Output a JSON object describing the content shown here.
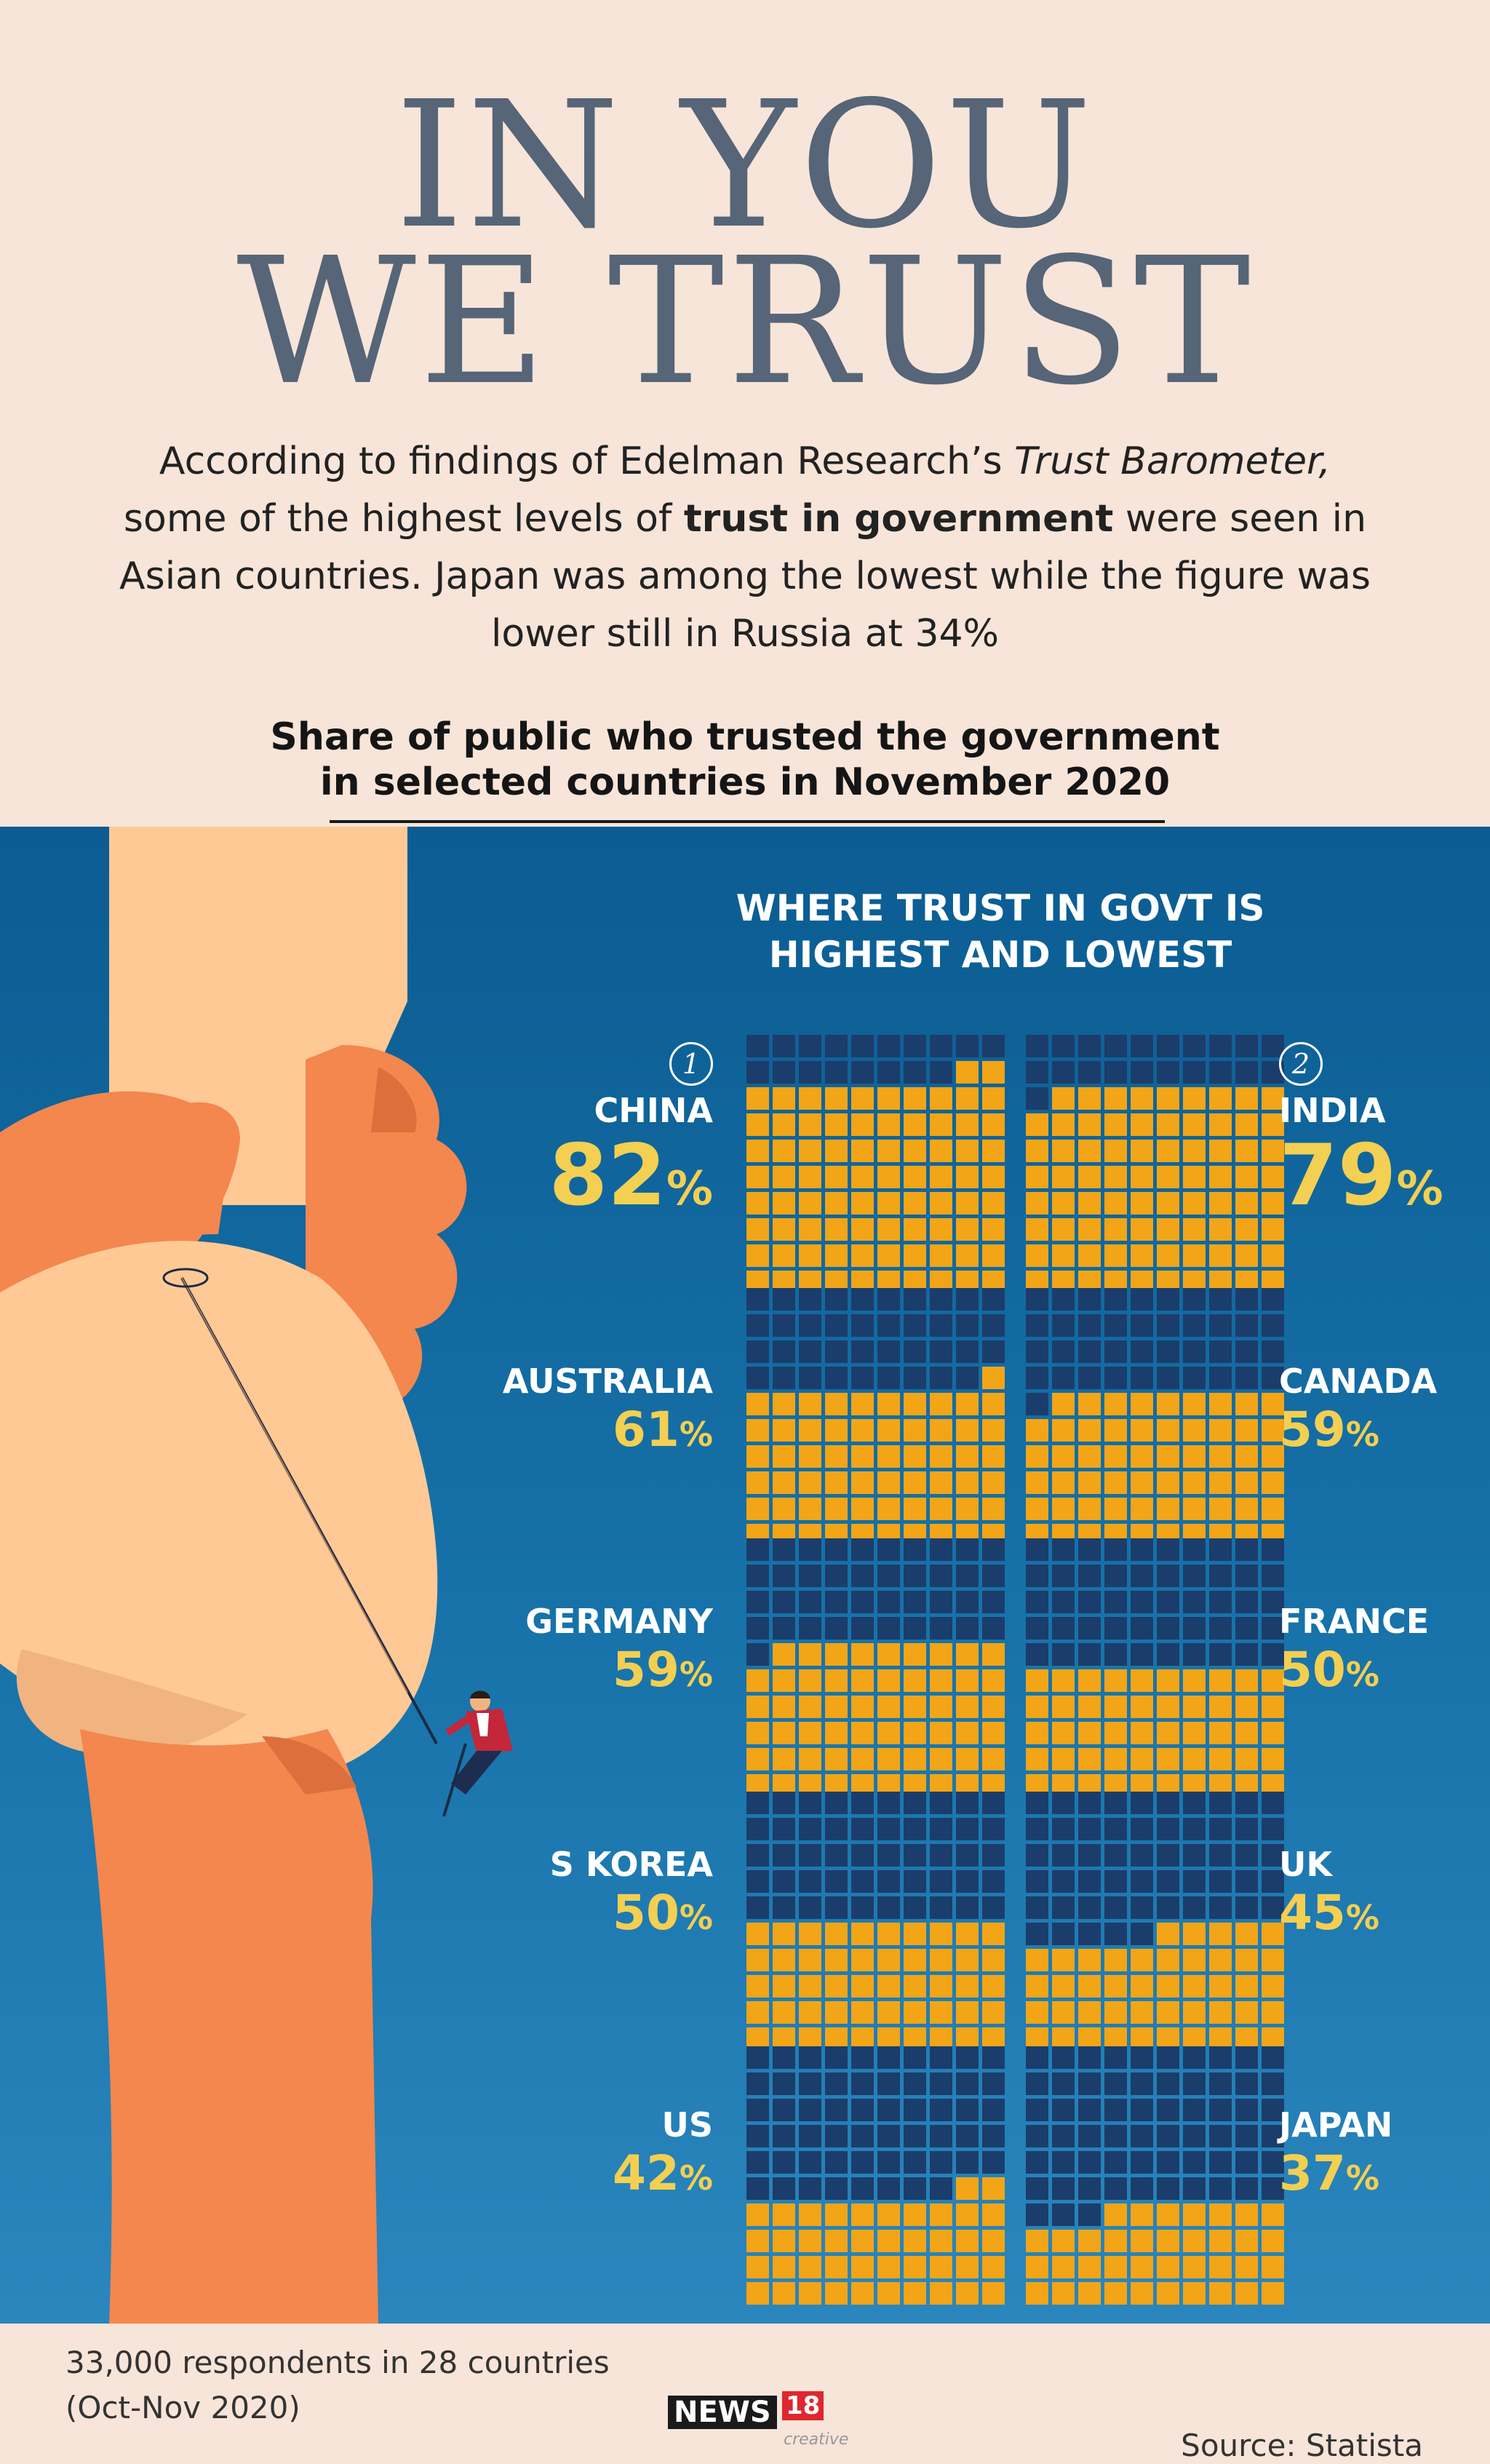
{
  "title": {
    "line1": "IN YOU",
    "line2": "WE TRUST"
  },
  "intro": {
    "part1": "According to findings of Edelman Research’s ",
    "italic": "Trust Barometer,",
    "part2": " some of the highest levels of ",
    "bold": "trust in government",
    "part3": " were seen in Asian countries. Japan was among the lowest while the figure was lower still in Russia at 34%"
  },
  "subtitle": {
    "line1": "Share of public who trusted the government",
    "line2": "in selected countries in November 2020"
  },
  "panel_heading": {
    "line1": "WHERE TRUST IN GOVT IS",
    "line2": "HIGHEST AND LOWEST"
  },
  "percent_sign": "%",
  "colors": {
    "filled": "#f2a516",
    "empty": "#1b3d6b",
    "background": "#f7e5d9",
    "panel": "#1671a8",
    "value_text": "#f3cf52",
    "title": "#566577"
  },
  "chart_data": {
    "type": "waffle",
    "title": "Share of public who trusted the government in selected countries in November 2020",
    "subtitle": "WHERE TRUST IN GOVT IS HIGHEST AND LOWEST",
    "unit": "%",
    "grid": [
      10,
      10
    ],
    "categories": [
      "CHINA",
      "INDIA",
      "AUSTRALIA",
      "CANADA",
      "GERMANY",
      "FRANCE",
      "S KOREA",
      "UK",
      "US",
      "JAPAN"
    ],
    "values": [
      82,
      79,
      61,
      59,
      59,
      50,
      50,
      45,
      42,
      37
    ],
    "ranks": {
      "CHINA": "1",
      "INDIA": "2"
    }
  },
  "footer": {
    "respondents_line1": "33,000 respondents in 28 countries",
    "respondents_line2": "(Oct-Nov 2020)",
    "logo_news": "NEWS",
    "logo_18": "18",
    "logo_creative": "creative",
    "source": "Source: Statista"
  }
}
